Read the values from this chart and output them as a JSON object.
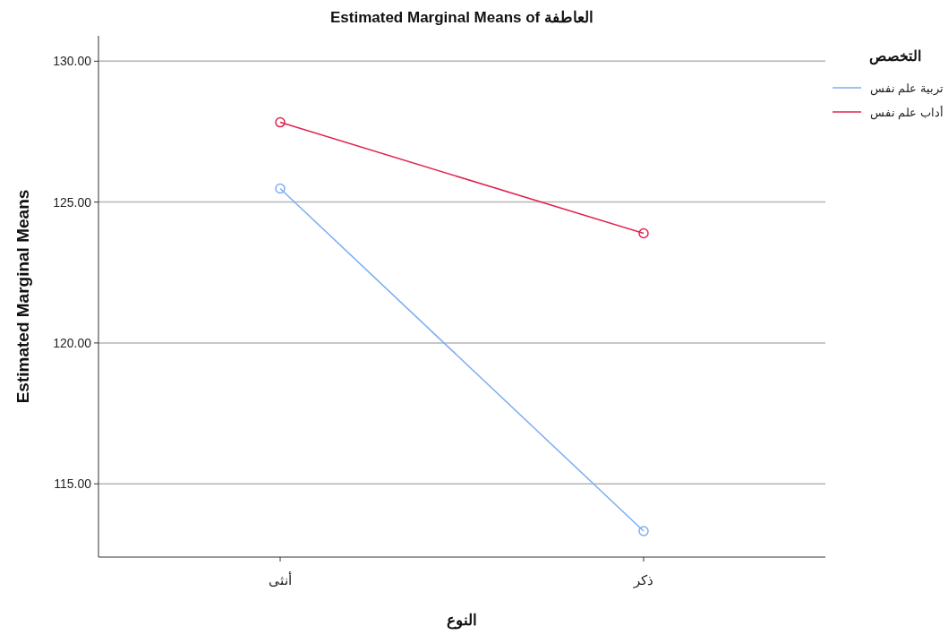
{
  "chart_data": {
    "type": "line",
    "title": "Estimated Marginal Means of العاطفة",
    "xlabel": "النوع",
    "ylabel": "Estimated Marginal Means",
    "legend_title": "التخصص",
    "categories": [
      "أنثى",
      "ذكر"
    ],
    "series": [
      {
        "name": "تربية علم نفس",
        "color": "#7aaef0",
        "values": [
          125.48,
          113.32
        ]
      },
      {
        "name": "أداب علم نفس",
        "color": "#e0244f",
        "values": [
          127.83,
          123.89
        ]
      }
    ],
    "ylim": [
      112.4,
      130.9
    ],
    "yticks": [
      {
        "value": 115,
        "label": "115.00"
      },
      {
        "value": 120,
        "label": "120.00"
      },
      {
        "value": 125,
        "label": "125.00"
      },
      {
        "value": 130,
        "label": "130.00"
      }
    ],
    "grid": "y",
    "legend": "top right",
    "marker": "circle"
  }
}
